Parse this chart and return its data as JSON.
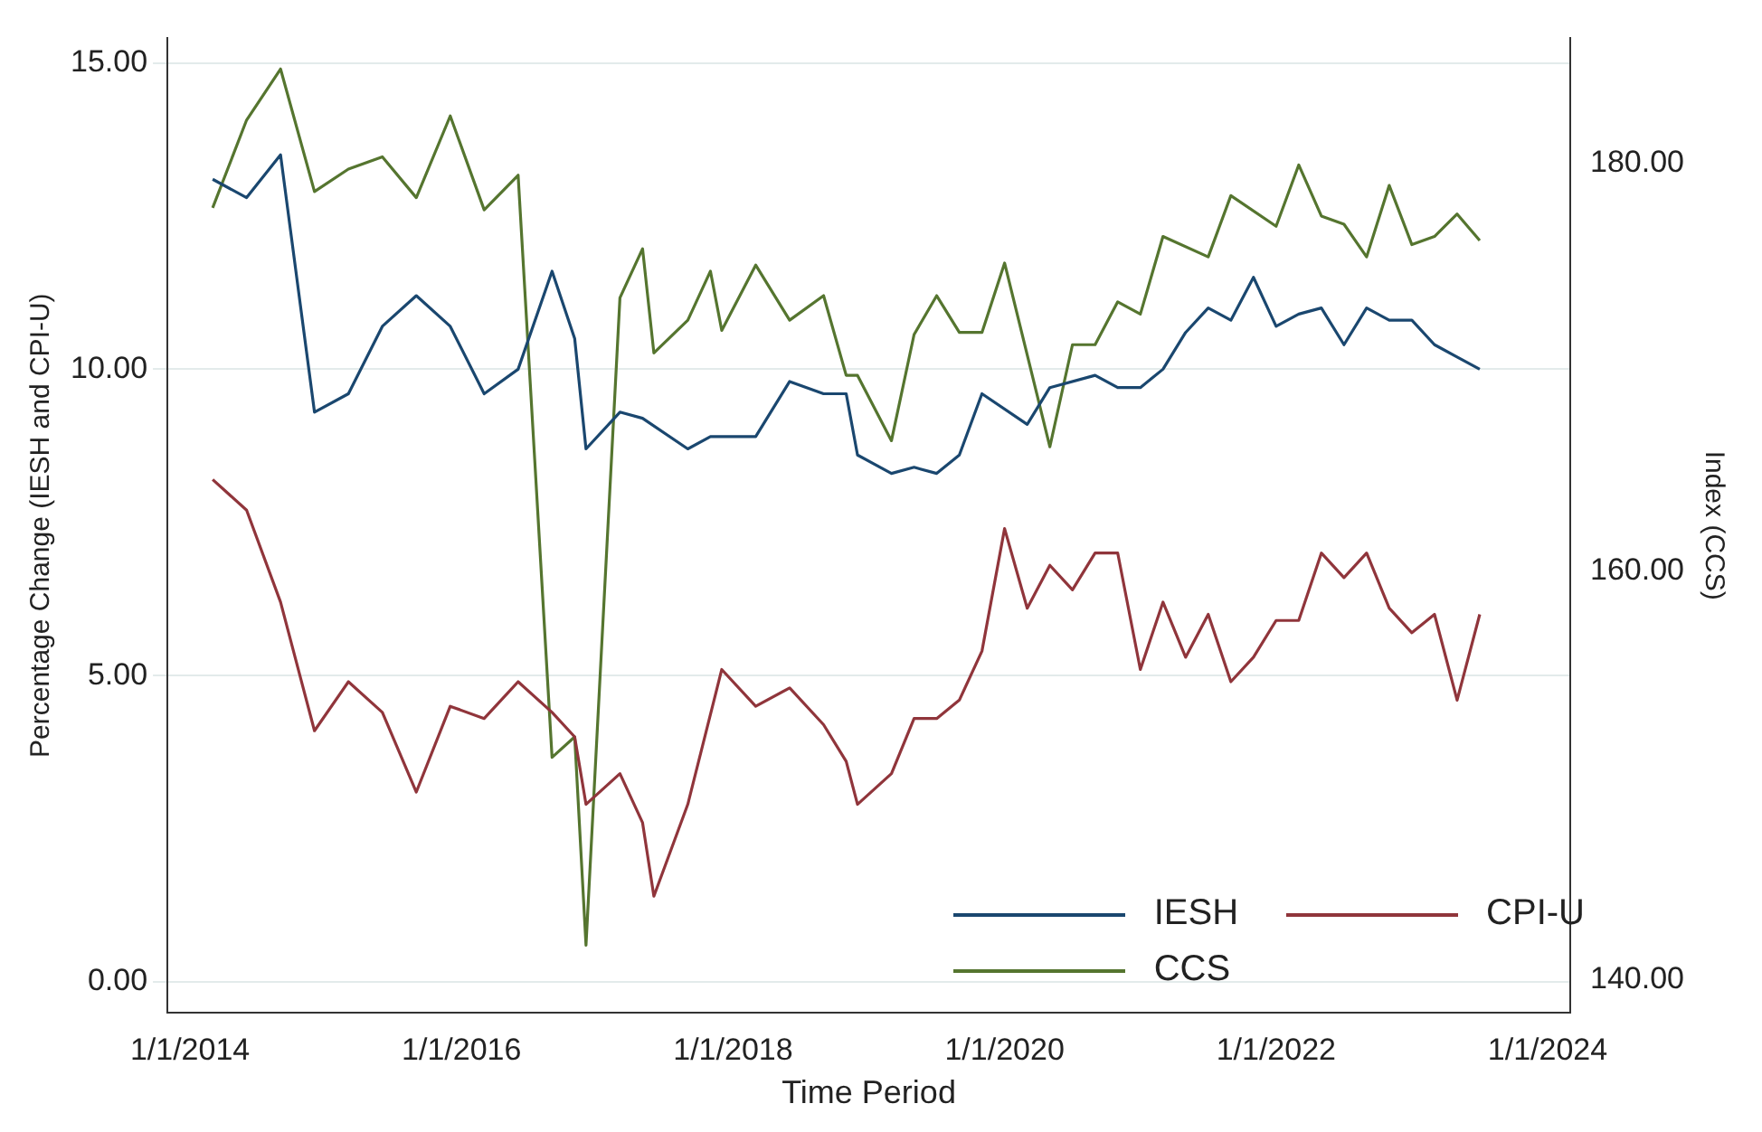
{
  "chart_data": {
    "type": "line",
    "xlabel": "Time Period",
    "ylabel": "Percentage Change (IESH and CPI-U)",
    "y2label": "Index (CCS)",
    "xlim": [
      "2013-11",
      "2024-03"
    ],
    "xticks": [
      {
        "value": "2014-01-01",
        "label": "1/1/2014"
      },
      {
        "value": "2016-01-01",
        "label": "1/1/2016"
      },
      {
        "value": "2018-01-01",
        "label": "1/1/2018"
      },
      {
        "value": "2020-01-01",
        "label": "1/1/2020"
      },
      {
        "value": "2022-01-01",
        "label": "1/1/2022"
      },
      {
        "value": "2024-01-01",
        "label": "1/1/2024"
      }
    ],
    "ylim": [
      -0.5,
      15.4
    ],
    "yticks": [
      {
        "value": 0,
        "label": "0.00"
      },
      {
        "value": 5,
        "label": "5.00"
      },
      {
        "value": 10,
        "label": "10.00"
      },
      {
        "value": 15,
        "label": "15.00"
      }
    ],
    "y2lim": [
      138.4,
      186.1
    ],
    "y2ticks": [
      {
        "value": 140,
        "label": "140.00"
      },
      {
        "value": 160,
        "label": "160.00"
      },
      {
        "value": 180,
        "label": "180.00"
      }
    ],
    "grid": "y",
    "legend": "bottom right",
    "marker": "none",
    "line_style": "solid",
    "series": [
      {
        "name": "IESH",
        "color": "#1a476f",
        "x": [
          "2014-03",
          "2014-06",
          "2014-09",
          "2014-12",
          "2015-03",
          "2015-06",
          "2015-09",
          "2015-12",
          "2016-03",
          "2016-06",
          "2016-09",
          "2016-11",
          "2016-12",
          "2017-03",
          "2017-05",
          "2017-09",
          "2017-11",
          "2018-03",
          "2018-06",
          "2018-09",
          "2018-11",
          "2018-12",
          "2019-03",
          "2019-05",
          "2019-07",
          "2019-09",
          "2019-11",
          "2020-03",
          "2020-05",
          "2020-09",
          "2020-11",
          "2021-01",
          "2021-03",
          "2021-05",
          "2021-07",
          "2021-09",
          "2021-11",
          "2022-01",
          "2022-03",
          "2022-05",
          "2022-07",
          "2022-09",
          "2022-11",
          "2023-01",
          "2023-03",
          "2023-05",
          "2023-07"
        ],
        "values": [
          13.1,
          12.8,
          13.5,
          9.3,
          9.6,
          10.7,
          11.2,
          10.7,
          9.6,
          10.0,
          11.6,
          10.5,
          8.7,
          9.3,
          9.2,
          8.7,
          8.9,
          8.9,
          9.8,
          9.6,
          9.6,
          8.6,
          8.3,
          8.4,
          8.3,
          8.6,
          9.6,
          9.1,
          9.7,
          9.9,
          9.7,
          9.7,
          10.0,
          10.6,
          11.0,
          10.8,
          11.5,
          10.7,
          10.9,
          11.0,
          10.4,
          11.0,
          10.8,
          10.8,
          10.4,
          10.2,
          10.0
        ]
      },
      {
        "name": "CPI-U",
        "color": "#90353b",
        "x": [
          "2014-03",
          "2014-06",
          "2014-09",
          "2014-12",
          "2015-03",
          "2015-06",
          "2015-09",
          "2015-12",
          "2016-03",
          "2016-06",
          "2016-09",
          "2016-11",
          "2016-12",
          "2017-03",
          "2017-05",
          "2017-06",
          "2017-09",
          "2017-12",
          "2018-03",
          "2018-06",
          "2018-09",
          "2018-11",
          "2018-12",
          "2019-03",
          "2019-05",
          "2019-07",
          "2019-09",
          "2019-11",
          "2020-01",
          "2020-03",
          "2020-05",
          "2020-07",
          "2020-09",
          "2020-11",
          "2021-01",
          "2021-03",
          "2021-05",
          "2021-07",
          "2021-09",
          "2021-11",
          "2022-01",
          "2022-03",
          "2022-05",
          "2022-07",
          "2022-09",
          "2022-11",
          "2023-01",
          "2023-03",
          "2023-05",
          "2023-07"
        ],
        "values": [
          8.2,
          7.7,
          6.2,
          4.1,
          4.9,
          4.4,
          3.1,
          4.5,
          4.3,
          4.9,
          4.4,
          4.0,
          2.9,
          3.4,
          2.6,
          1.4,
          2.9,
          5.1,
          4.5,
          4.8,
          4.2,
          3.6,
          2.9,
          3.4,
          4.3,
          4.3,
          4.6,
          5.4,
          7.4,
          6.1,
          6.8,
          6.4,
          7.0,
          7.0,
          5.1,
          6.2,
          5.3,
          6.0,
          4.9,
          5.3,
          5.9,
          5.9,
          7.0,
          6.6,
          7.0,
          6.1,
          5.7,
          6.0,
          4.6,
          6.0
        ]
      },
      {
        "name": "CCS",
        "color": "#55752f",
        "axis": "y2",
        "x": [
          "2014-03",
          "2014-06",
          "2014-09",
          "2014-12",
          "2015-03",
          "2015-06",
          "2015-09",
          "2015-12",
          "2016-03",
          "2016-06",
          "2016-09",
          "2016-11",
          "2016-12",
          "2017-03",
          "2017-05",
          "2017-06",
          "2017-09",
          "2017-11",
          "2017-12",
          "2018-03",
          "2018-06",
          "2018-09",
          "2018-11",
          "2018-12",
          "2019-03",
          "2019-05",
          "2019-07",
          "2019-09",
          "2019-11",
          "2020-01",
          "2020-05",
          "2020-07",
          "2020-09",
          "2020-11",
          "2021-01",
          "2021-03",
          "2021-07",
          "2021-09",
          "2022-01",
          "2022-03",
          "2022-05",
          "2022-07",
          "2022-09",
          "2022-11",
          "2023-01",
          "2023-03",
          "2023-05",
          "2023-07"
        ],
        "values": [
          177.8,
          182.1,
          184.6,
          178.6,
          179.7,
          180.3,
          178.3,
          182.3,
          177.7,
          179.4,
          150.9,
          151.9,
          141.7,
          173.4,
          175.8,
          170.7,
          172.3,
          174.7,
          171.8,
          175.0,
          172.3,
          173.5,
          169.6,
          169.6,
          166.4,
          171.6,
          173.5,
          171.7,
          171.7,
          175.1,
          166.1,
          171.1,
          171.1,
          173.2,
          172.6,
          176.4,
          175.4,
          178.4,
          176.9,
          179.9,
          177.4,
          177.0,
          175.4,
          178.9,
          176.0,
          176.4,
          177.5,
          176.2
        ]
      }
    ]
  }
}
